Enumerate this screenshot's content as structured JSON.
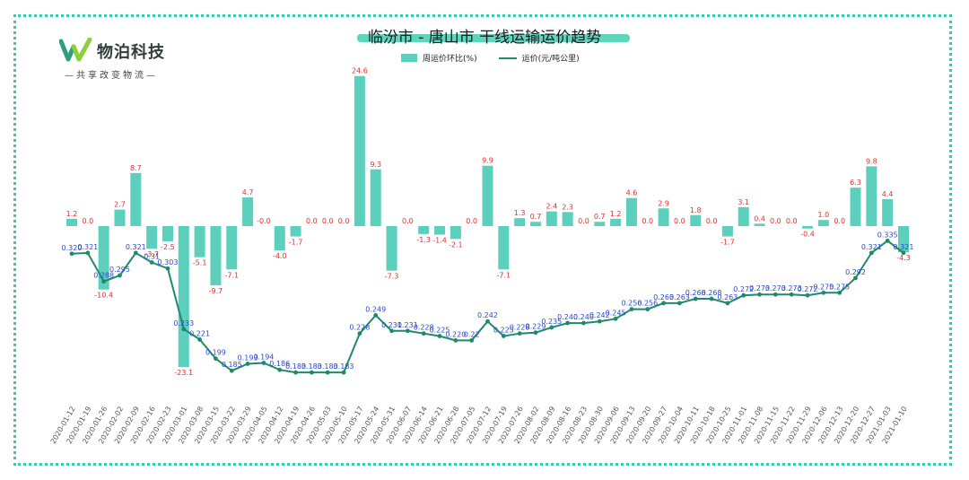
{
  "logo": {
    "name": "物泊科技",
    "slogan": "—共享改变物流—",
    "colors": {
      "left_stroke": "#2e9e7e",
      "right_stroke": "#8ccf3e"
    }
  },
  "colors": {
    "bar": "#5ccfbd",
    "line": "#1f8a6b",
    "point": "#1f8a6b",
    "bar_label": "#e03030",
    "point_label": "#2b4bd0",
    "frame": "#3fc9a8"
  },
  "chart_data": {
    "type": "bar+line",
    "title": "临汾市 - 唐山市 干线运输运价趋势",
    "legend_position": "top-center",
    "grid": false,
    "categories": [
      "2020-01-12",
      "2020-01-19",
      "2020-01-26",
      "2020-02-02",
      "2020-02-09",
      "2020-02-16",
      "2020-02-23",
      "2020-03-01",
      "2020-03-08",
      "2020-03-15",
      "2020-03-22",
      "2020-03-29",
      "2020-04-05",
      "2020-04-12",
      "2020-04-19",
      "2020-04-26",
      "2020-05-03",
      "2020-05-10",
      "2020-05-17",
      "2020-05-24",
      "2020-05-31",
      "2020-06-07",
      "2020-06-14",
      "2020-06-21",
      "2020-06-28",
      "2020-07-05",
      "2020-07-12",
      "2020-07-19",
      "2020-07-26",
      "2020-08-02",
      "2020-08-09",
      "2020-08-16",
      "2020-08-23",
      "2020-08-30",
      "2020-09-06",
      "2020-09-13",
      "2020-09-20",
      "2020-09-27",
      "2020-10-04",
      "2020-10-11",
      "2020-10-18",
      "2020-10-25",
      "2020-11-01",
      "2020-11-08",
      "2020-11-15",
      "2020-11-22",
      "2020-11-29",
      "2020-12-06",
      "2020-12-13",
      "2020-12-20",
      "2020-12-27",
      "2021-01-03",
      "2021-01-10"
    ],
    "series": [
      {
        "name": "周运价环比(%)",
        "type": "bar",
        "values": [
          1.2,
          0.0,
          -10.4,
          2.7,
          8.7,
          -3.7,
          -2.5,
          -23.1,
          -5.1,
          -9.7,
          -7.1,
          4.7,
          -0.0,
          -4.0,
          -1.7,
          0.0,
          0.0,
          0.0,
          24.6,
          9.3,
          -7.3,
          0.0,
          -1.3,
          -1.4,
          -2.1,
          0.0,
          9.9,
          -7.1,
          1.3,
          0.7,
          2.4,
          2.3,
          0.0,
          0.7,
          1.2,
          4.6,
          0.0,
          2.9,
          0.0,
          1.8,
          0.0,
          -1.7,
          3.1,
          0.4,
          0.0,
          0.0,
          -0.4,
          1.0,
          0.0,
          6.3,
          9.8,
          4.4,
          -4.3
        ],
        "labels": [
          "1.2",
          "0.0",
          "-10.4",
          "2.7",
          "8.7",
          "-3.7",
          "-2.5",
          "-23.1",
          "-5.1",
          "-9.7",
          "-7.1",
          "4.7",
          "-0.0",
          "-4.0",
          "-1.7",
          "0.0",
          "0.0",
          "0.0",
          "24.6",
          "9.3",
          "-7.3",
          "0.0",
          "-1.3",
          "-1.4",
          "-2.1",
          "0.0",
          "9.9",
          "-7.1",
          "1.3",
          "0.7",
          "2.4",
          "2.3",
          "0.0",
          "0.7",
          "1.2",
          "4.6",
          "0.0",
          "2.9",
          "0.0",
          "1.8",
          "0.0",
          "-1.7",
          "3.1",
          "0.4",
          "0.0",
          "0.0",
          "-0.4",
          "1.0",
          "0.0",
          "6.3",
          "9.8",
          "4.4",
          "-4.3"
        ]
      },
      {
        "name": "运价(元/吨公里)",
        "type": "line",
        "values": [
          0.32,
          0.321,
          0.288,
          0.295,
          0.321,
          0.31,
          0.303,
          0.233,
          0.221,
          0.199,
          0.185,
          0.193,
          0.194,
          0.186,
          0.183,
          0.183,
          0.183,
          0.183,
          0.228,
          0.249,
          0.231,
          0.231,
          0.228,
          0.225,
          0.22,
          0.22,
          0.242,
          0.225,
          0.228,
          0.229,
          0.235,
          0.24,
          0.24,
          0.242,
          0.245,
          0.256,
          0.256,
          0.263,
          0.263,
          0.268,
          0.268,
          0.263,
          0.272,
          0.273,
          0.273,
          0.273,
          0.272,
          0.275,
          0.275,
          0.292,
          0.321,
          0.335,
          0.321
        ],
        "labels": [
          "0.320",
          "0.321",
          "0.288",
          "0.295",
          "0.321",
          "0.31",
          "0.303",
          "0.233",
          "0.221",
          "0.199",
          "0.185",
          "0.193",
          "0.194",
          "0.186",
          "0.183",
          "0.183",
          "0.183",
          "0.183",
          "0.228",
          "0.249",
          "0.231",
          "0.231",
          "0.228",
          "0.225",
          "0.220",
          "0.22",
          "0.242",
          "0.225",
          "0.228",
          "0.229",
          "0.235",
          "0.240",
          "0.240",
          "0.242",
          "0.245",
          "0.256",
          "0.256",
          "0.263",
          "0.263",
          "0.268",
          "0.268",
          "0.263",
          "0.272",
          "0.273",
          "0.273",
          "0.273",
          "0.272",
          "0.275",
          "0.275",
          "0.292",
          "0.321",
          "0.335",
          "0.321"
        ]
      }
    ],
    "bar_axis_range": [
      -25,
      26
    ],
    "line_axis_range": [
      0.15,
      0.5
    ]
  }
}
